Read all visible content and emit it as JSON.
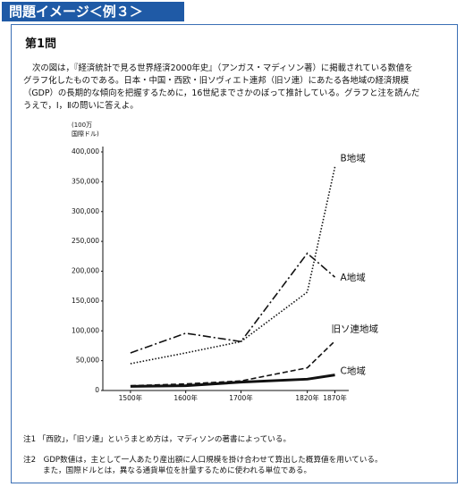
{
  "header": {
    "title": "問題イメージ＜例３＞"
  },
  "question": {
    "number": "第1問",
    "lines": [
      "次の図は，『経済統計で見る世界経済2000年史』（アンガス・マディソン著）に掲載されている数値を",
      "グラフ化したものである。日本・中国・西欧・旧ソヴィエト連邦（旧ソ連）にあたる各地域の経済規模",
      "（GDP）の長期的な傾向を把握するために，16世紀までさかのぼって推計している。グラフと注を読んだ",
      "うえで，Ⅰ，Ⅱの問いに答えよ。"
    ]
  },
  "chart_data": {
    "type": "line",
    "ylabel": [
      "(100万",
      "国際ドル)"
    ],
    "x": [
      1500,
      1600,
      1700,
      1820,
      1870
    ],
    "xlim": [
      1450,
      1895
    ],
    "xticks": [
      {
        "value": 1500,
        "label": "1500年"
      },
      {
        "value": 1600,
        "label": "1600年"
      },
      {
        "value": 1700,
        "label": "1700年"
      },
      {
        "value": 1820,
        "label": "1820年"
      },
      {
        "value": 1870,
        "label": "1870年"
      }
    ],
    "ylim": [
      0,
      400000
    ],
    "yticks": [
      0,
      {
        "value": 50000,
        "label": "50,000"
      },
      {
        "value": 100000,
        "label": "100,000"
      },
      {
        "value": 150000,
        "label": "150,000"
      },
      {
        "value": 200000,
        "label": "200,000"
      },
      {
        "value": 250000,
        "label": "250,000"
      },
      {
        "value": 300000,
        "label": "300,000"
      },
      {
        "value": 350000,
        "label": "350,000"
      },
      {
        "value": 400000,
        "label": "400,000"
      }
    ],
    "grid": false,
    "legend": "line-end",
    "series": [
      {
        "name": "A地域",
        "color": "#111111",
        "dash": "dashdot",
        "values": [
          63000,
          96000,
          82000,
          230000,
          190000
        ]
      },
      {
        "name": "B地域",
        "color": "#111111",
        "dash": "dotted",
        "values": [
          45000,
          63000,
          82000,
          165000,
          375000
        ]
      },
      {
        "name": "旧ソ連地域",
        "color": "#111111",
        "dash": "dashed",
        "values": [
          8000,
          11000,
          16000,
          38000,
          83000
        ]
      },
      {
        "name": "C地域",
        "color": "#111111",
        "dash": "solid",
        "values": [
          7000,
          8000,
          14000,
          19000,
          26000
        ]
      }
    ]
  },
  "notes": [
    "注1 「西欧」，「旧ソ連」というまとめ方は，マディソンの著書によっている。",
    "注2　GDP数値は，主として一人あたり産出額に人口規模を掛け合わせて算出した概算値を用いている。",
    "また，国際ドルとは，異なる通貨単位を計量するために使われる単位である。"
  ]
}
